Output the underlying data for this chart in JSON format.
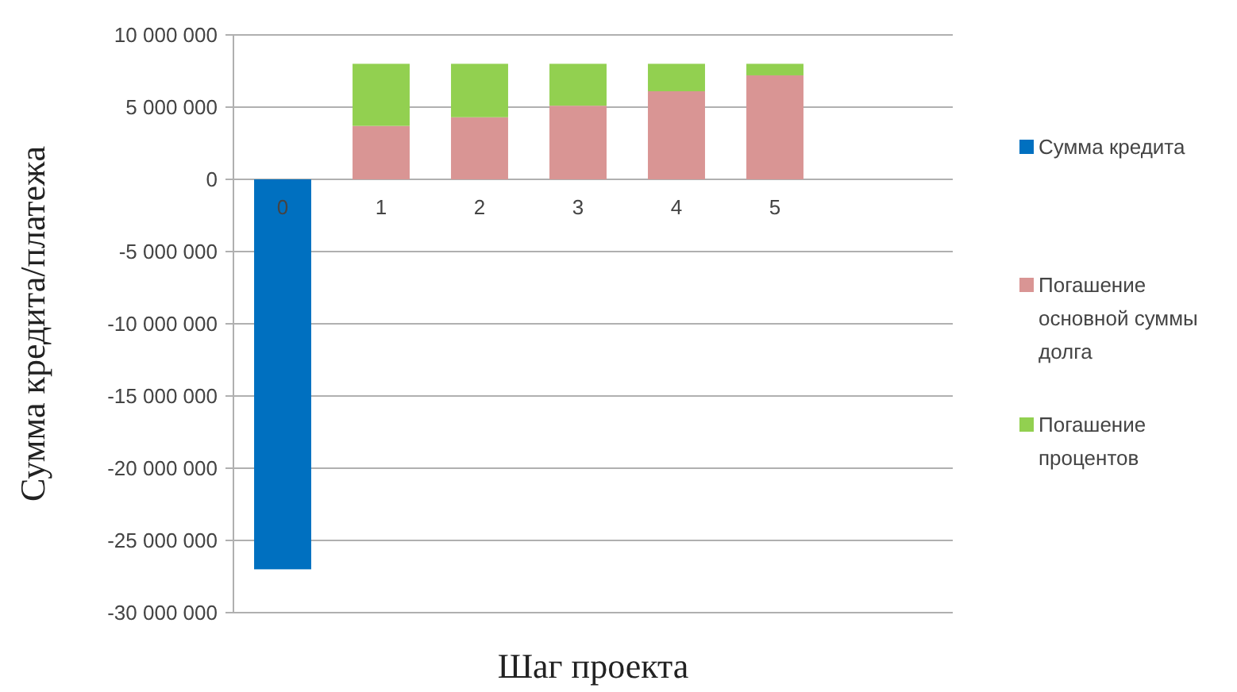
{
  "chart_data": {
    "type": "bar",
    "stacked": true,
    "xlabel": "Шаг проекта",
    "ylabel": "Сумма кредита/платежа",
    "categories": [
      "0",
      "1",
      "2",
      "3",
      "4",
      "5"
    ],
    "series": [
      {
        "name": "Сумма кредита",
        "color": "#0070c0",
        "values": [
          -27000000,
          null,
          null,
          null,
          null,
          null
        ]
      },
      {
        "name": "Погашение основной суммы долга",
        "color": "#d99594",
        "values": [
          null,
          3700000,
          4300000,
          5100000,
          6100000,
          7200000
        ]
      },
      {
        "name": "Погашение процентов",
        "color": "#92d050",
        "values": [
          null,
          4300000,
          3700000,
          2900000,
          1900000,
          800000
        ]
      }
    ],
    "ylim": [
      -30000000,
      10000000
    ],
    "yticks": [
      {
        "value": 10000000,
        "label": "10 000 000"
      },
      {
        "value": 5000000,
        "label": "5 000 000"
      },
      {
        "value": 0,
        "label": "0"
      },
      {
        "value": -5000000,
        "label": "-5 000 000"
      },
      {
        "value": -10000000,
        "label": "-10 000 000"
      },
      {
        "value": -15000000,
        "label": "-15 000 000"
      },
      {
        "value": -20000000,
        "label": "-20 000 000"
      },
      {
        "value": -25000000,
        "label": "-25 000 000"
      },
      {
        "value": -30000000,
        "label": "-30 000 000"
      }
    ],
    "grid": "y",
    "legend": "right"
  }
}
